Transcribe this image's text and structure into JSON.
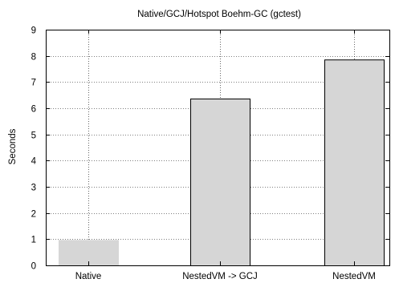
{
  "chart_data": {
    "type": "bar",
    "title": "Native/GCJ/Hotspot Boehm-GC (gctest)",
    "xlabel": "",
    "ylabel": "Seconds",
    "categories": [
      "Native",
      "NestedVM -> GCJ",
      "NestedVM"
    ],
    "values": [
      0.97,
      6.37,
      7.86
    ],
    "ylim": [
      0,
      9
    ],
    "yticks": [
      0,
      1,
      2,
      3,
      4,
      5,
      6,
      7,
      8,
      9
    ],
    "grid": true,
    "bar_color": "#d6d6d6",
    "bar_edge_colors": [
      "#d6d6d6",
      "#000000",
      "#000000"
    ]
  }
}
